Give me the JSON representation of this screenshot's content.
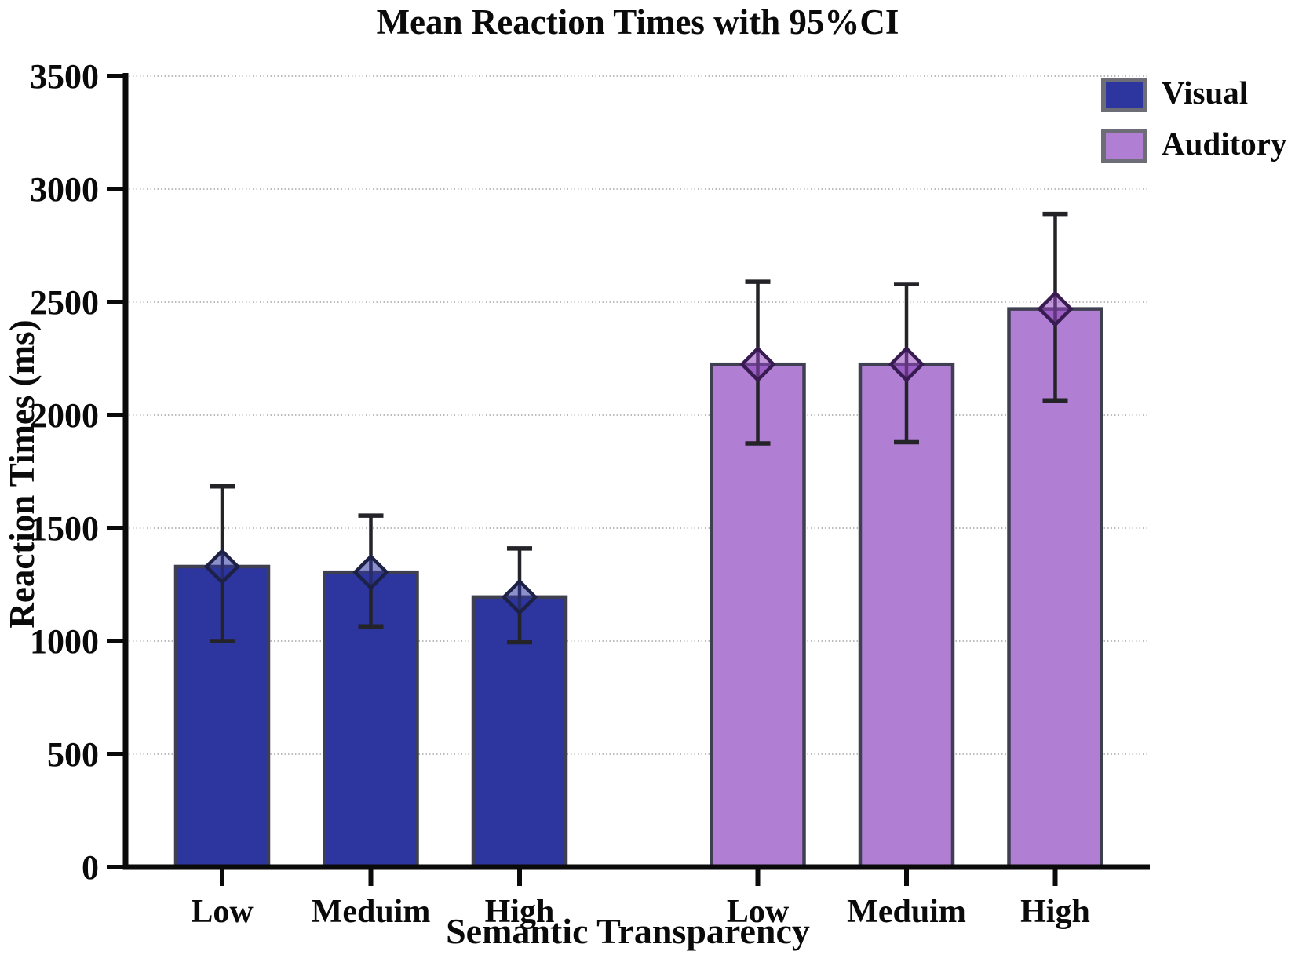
{
  "chart_data": {
    "type": "bar",
    "title": "Mean Reaction Times with 95%CI",
    "xlabel": "Semantic Transparency",
    "ylabel": "Reaction Times (ms)",
    "ylim": [
      0,
      3500
    ],
    "yticks": [
      0,
      500,
      1000,
      1500,
      2000,
      2500,
      3000,
      3500
    ],
    "categories": [
      "Low",
      "Meduim",
      "High"
    ],
    "grid": "horizontal-dotted",
    "legend_position": "top-right",
    "marker": "diamond",
    "error_bar_label": "95% CI",
    "series": [
      {
        "name": "Visual",
        "color": "#2d359e",
        "diamond_color": "#2d359e",
        "diamond_border": "#1c2145",
        "means": [
          1330,
          1305,
          1195
        ],
        "ci_low": [
          1000,
          1065,
          995
        ],
        "ci_high": [
          1685,
          1555,
          1410
        ]
      },
      {
        "name": "Auditory",
        "color": "#b07ed2",
        "diamond_color": "#8f44bd",
        "diamond_border": "#381c51",
        "means": [
          2225,
          2225,
          2470
        ],
        "ci_low": [
          1875,
          1880,
          2065
        ],
        "ci_high": [
          2590,
          2580,
          2890
        ]
      }
    ],
    "colors": {
      "bar_border": "#3f3f52",
      "error_bar": "#232328",
      "gridline": "#a6a6a6",
      "axis": "#0a0a0a",
      "text": "#0a0a0a"
    }
  }
}
